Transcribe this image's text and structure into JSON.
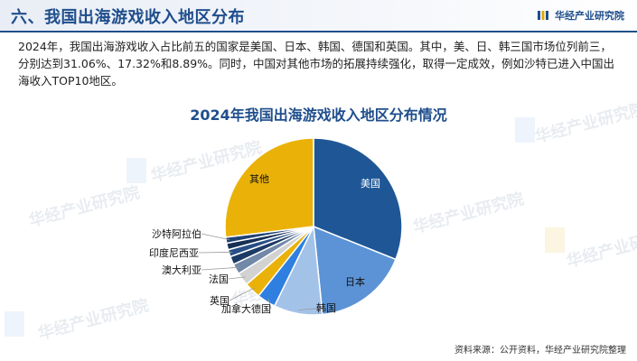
{
  "header": {
    "title": "六、我国出海游戏收入地区分布",
    "brand": "华经产业研究院"
  },
  "intro": "2024年，我国出海游戏收入占比前五的国家是美国、日本、韩国、德国和英国。其中，美、日、韩三国市场位列前三，分别达到31.06%、17.32%和8.89%。同时，中国对其他市场的拓展持续强化，取得一定成效，例如沙特已进入中国出海收入TOP10地区。",
  "watermark": "华经产业研究院",
  "source": "资料来源：公开资料，华经产业研究院整理",
  "colors": {
    "accent": "#1f4e8c",
    "usa": "#1f5796",
    "japan": "#5b93d6",
    "korea": "#a3c2e8",
    "canada": "#2e7fe0",
    "uk": "#eab209",
    "france": "#d2d2d2",
    "australia": "#7288a8",
    "other_small": "#1c3a66",
    "other": "#eab209"
  },
  "chart_data": {
    "type": "pie",
    "title": "2024年我国出海游戏收入地区分布情况",
    "unit": "%",
    "slices": [
      {
        "label": "美国",
        "value": 31.06,
        "color": "#1f5796"
      },
      {
        "label": "日本",
        "value": 17.32,
        "color": "#5b93d6"
      },
      {
        "label": "韩国",
        "value": 8.89,
        "color": "#a3c2e8"
      },
      {
        "label": "加拿大德国",
        "value": 3.4,
        "color": "#2e7fe0"
      },
      {
        "label": "英国",
        "value": 3.0,
        "color": "#eab209"
      },
      {
        "label": "法国",
        "value": 2.4,
        "color": "#d2d2d2"
      },
      {
        "label": "澳大利亚",
        "value": 1.9,
        "color": "#7288a8"
      },
      {
        "label": "",
        "value": 1.5,
        "color": "#1c3a66"
      },
      {
        "label": "印度尼西亚",
        "value": 1.3,
        "color": "#274f86"
      },
      {
        "label": "",
        "value": 1.2,
        "color": "#163056"
      },
      {
        "label": "沙特阿拉伯",
        "value": 1.1,
        "color": "#1f4274"
      },
      {
        "label": "其他",
        "value": 26.93,
        "color": "#eab209"
      }
    ]
  }
}
